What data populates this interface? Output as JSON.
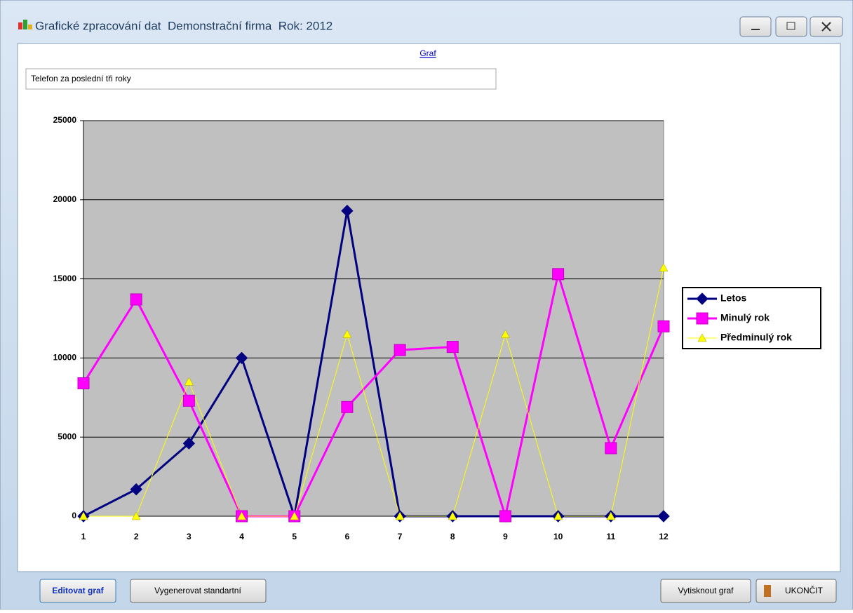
{
  "window": {
    "title": "Grafické zpracování dat  Demonstrační firma  Rok: 2012"
  },
  "link": "Graf",
  "chart_title_input": "Telefon za poslední tři roky",
  "buttons": {
    "edit": "Editovat graf",
    "generate": "Vygenerovat standartní",
    "print": "Vytisknout graf",
    "exit": "UKONČIT"
  },
  "chart_data": {
    "type": "line",
    "categories": [
      "1",
      "2",
      "3",
      "4",
      "5",
      "6",
      "7",
      "8",
      "9",
      "10",
      "11",
      "12"
    ],
    "series": [
      {
        "name": "Letos",
        "color": "#000080",
        "marker": "diamond",
        "values": [
          0,
          1700,
          4600,
          10000,
          0,
          19300,
          0,
          0,
          0,
          0,
          0,
          0
        ]
      },
      {
        "name": "Minulý rok",
        "color": "#ff00ff",
        "marker": "square",
        "values": [
          8400,
          13700,
          7300,
          0,
          0,
          6900,
          10500,
          10700,
          0,
          15300,
          4300,
          12000
        ]
      },
      {
        "name": "Předminulý rok",
        "color": "#ffff00",
        "marker": "triangle",
        "values": [
          0,
          0,
          8500,
          0,
          0,
          11500,
          0,
          0,
          11500,
          0,
          0,
          15700
        ]
      }
    ],
    "ylim": [
      0,
      25000
    ],
    "yticks": [
      0,
      5000,
      10000,
      15000,
      20000,
      25000
    ],
    "grid": true,
    "legend": "right"
  }
}
